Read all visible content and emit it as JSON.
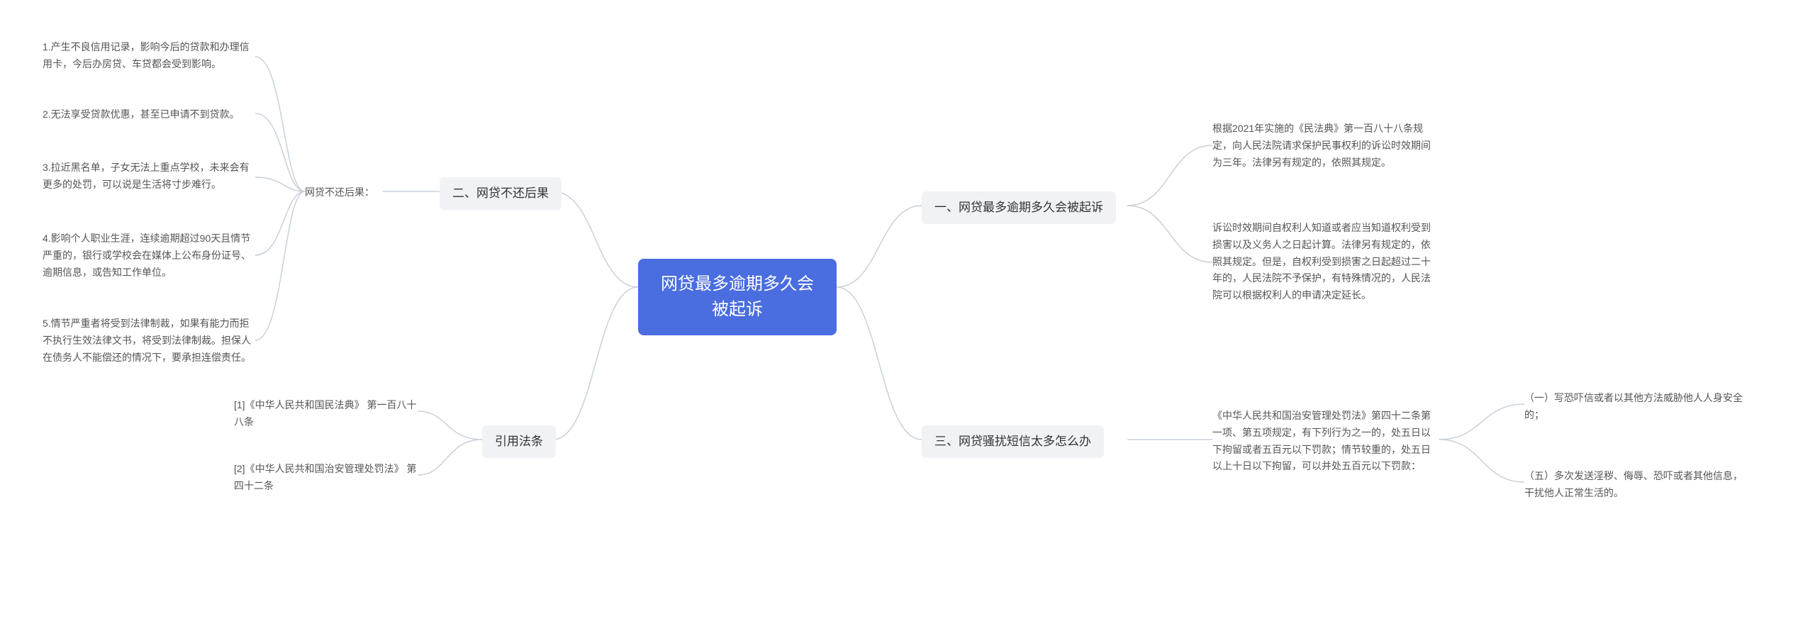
{
  "colors": {
    "root_bg": "#4a6ddf",
    "root_text": "#ffffff",
    "branch_bg": "#f0f2f5",
    "branch_text": "#333333",
    "leaf_text": "#555555",
    "connector": "#c9d0da",
    "page_bg": "#ffffff"
  },
  "root": {
    "text": "网贷最多逾期多久会被起诉"
  },
  "right": {
    "b1": {
      "label": "一、网贷最多逾期多久会被起诉",
      "leaves": [
        "根据2021年实施的《民法典》第一百八十八条规定，向人民法院请求保护民事权利的诉讼时效期间为三年。法律另有规定的，依照其规定。",
        "诉讼时效期间自权利人知道或者应当知道权利受到损害以及义务人之日起计算。法律另有规定的，依照其规定。但是，自权利受到损害之日起超过二十年的，人民法院不予保护，有特殊情况的，人民法院可以根据权利人的申请决定延长。"
      ]
    },
    "b3": {
      "label": "三、网贷骚扰短信太多怎么办",
      "sub": "《中华人民共和国治安管理处罚法》第四十二条第一项、第五项规定，有下列行为之一的，处五日以下拘留或者五百元以下罚款；情节较重的，处五日以上十日以下拘留，可以并处五百元以下罚款：",
      "leaves": [
        "（一）写恐吓信或者以其他方法威胁他人人身安全的；",
        "（五）多次发送淫秽、侮辱、恐吓或者其他信息，干扰他人正常生活的。"
      ]
    }
  },
  "left": {
    "b2": {
      "label": "二、网贷不还后果",
      "sub": "网贷不还后果：",
      "leaves": [
        "1.产生不良信用记录，影响今后的贷款和办理信用卡，今后办房贷、车贷都会受到影响。",
        "2.无法享受贷款优惠，甚至已申请不到贷款。",
        "3.拉近黑名单，子女无法上重点学校，未来会有更多的处罚，可以说是生活将寸步难行。",
        "4.影响个人职业生涯，连续逾期超过90天且情节严重的，银行或学校会在媒体上公布身份证号、逾期信息，或告知工作单位。",
        "5.情节严重者将受到法律制裁，如果有能力而拒不执行生效法律文书，将受到法律制裁。担保人在债务人不能偿还的情况下，要承担连偿责任。"
      ]
    },
    "b4": {
      "label": "引用法条",
      "leaves": [
        "[1]《中华人民共和国民法典》 第一百八十八条",
        "[2]《中华人民共和国治安管理处罚法》 第四十二条"
      ]
    }
  }
}
